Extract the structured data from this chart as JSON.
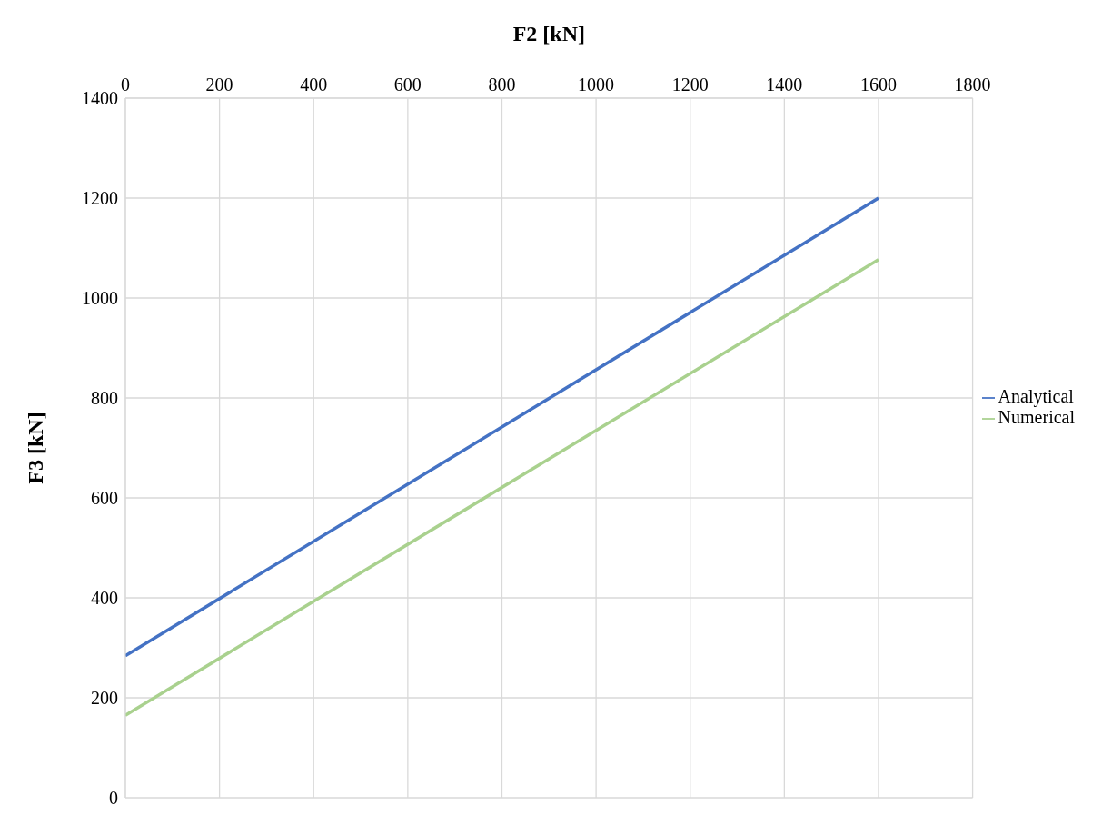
{
  "chart_data": {
    "type": "line",
    "xlabel": "F2 [kN]",
    "ylabel": "F3 [kN]",
    "x": [
      0,
      1600
    ],
    "series": [
      {
        "name": "Analytical",
        "color": "#4472c4",
        "values": [
          284,
          1200
        ]
      },
      {
        "name": "Numerical",
        "color": "#a9d18e",
        "values": [
          165,
          1077
        ]
      }
    ],
    "xlim": [
      0,
      1800
    ],
    "xticks": [
      0,
      200,
      400,
      600,
      800,
      1000,
      1200,
      1400,
      1600,
      1800
    ],
    "ylim": [
      0,
      1400
    ],
    "yticks": [
      0,
      200,
      400,
      600,
      800,
      1000,
      1200,
      1400
    ],
    "grid": true,
    "legend": "right",
    "marker": "none",
    "line_style": "solid"
  }
}
